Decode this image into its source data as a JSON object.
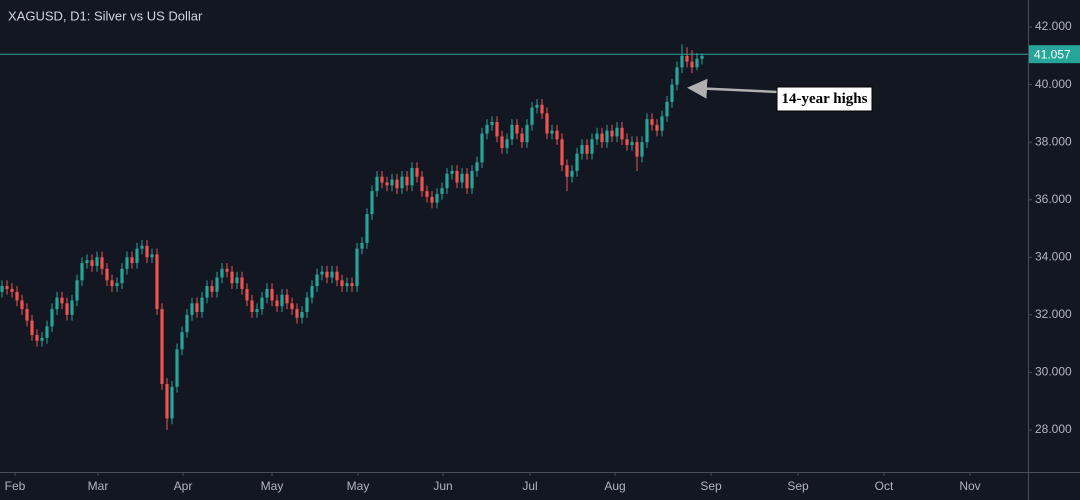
{
  "chart_data": {
    "type": "candlestick",
    "title": "XAGUSD, D1: Silver vs US Dollar",
    "up_color": "#26a69a",
    "down_color": "#ef5350",
    "last_price": 41.057,
    "last_price_color": "#26a69a",
    "annotation": "14-year highs",
    "xlim": [
      -0.4,
      205.2
    ],
    "xticks": [
      {
        "value": 2.6,
        "label": "Feb"
      },
      {
        "value": 19.2,
        "label": "Mar"
      },
      {
        "value": 36.2,
        "label": "Apr"
      },
      {
        "value": 54,
        "label": "May"
      },
      {
        "value": 71.2,
        "label": "May"
      },
      {
        "value": 88.2,
        "label": "Jun"
      },
      {
        "value": 105.6,
        "label": "Jul"
      },
      {
        "value": 122.6,
        "label": "Aug"
      },
      {
        "value": 141.8,
        "label": "Sep"
      },
      {
        "value": 159.2,
        "label": "Sep"
      },
      {
        "value": 176.4,
        "label": "Oct"
      },
      {
        "value": 193.6,
        "label": "Nov"
      }
    ],
    "ylim": [
      26.54,
      42.94
    ],
    "yticks": [
      {
        "value": 28,
        "label": "28.000"
      },
      {
        "value": 30,
        "label": "30.000"
      },
      {
        "value": 32,
        "label": "32.000"
      },
      {
        "value": 34,
        "label": "34.000"
      },
      {
        "value": 36,
        "label": "36.000"
      },
      {
        "value": 38,
        "label": "38.000"
      },
      {
        "value": 40,
        "label": "40.000"
      },
      {
        "value": 42,
        "label": "42.000"
      }
    ],
    "open": [
      32.8,
      33.0,
      32.9,
      32.8,
      32.5,
      32.2,
      31.8,
      31.3,
      31.1,
      31.2,
      31.6,
      32.2,
      32.6,
      32.4,
      32.0,
      32.5,
      33.2,
      33.8,
      33.9,
      33.7,
      34.0,
      33.6,
      33.2,
      33.0,
      33.1,
      33.6,
      34.0,
      33.8,
      34.3,
      34.4,
      34.0,
      34.1,
      32.2,
      29.6,
      28.4,
      29.5,
      30.8,
      31.4,
      32.0,
      32.4,
      32.1,
      32.6,
      33.0,
      32.8,
      33.3,
      33.6,
      33.5,
      33.1,
      33.3,
      32.9,
      32.5,
      32.1,
      32.2,
      32.6,
      32.9,
      32.5,
      32.3,
      32.7,
      32.4,
      32.2,
      31.9,
      32.1,
      32.6,
      33.0,
      33.4,
      33.5,
      33.3,
      33.5,
      33.2,
      33.0,
      33.1,
      33.0,
      34.3,
      34.5,
      35.5,
      36.3,
      36.8,
      36.6,
      36.5,
      36.7,
      36.4,
      36.8,
      36.5,
      37.1,
      36.8,
      36.3,
      36.1,
      35.9,
      36.2,
      36.4,
      36.9,
      37.0,
      36.6,
      36.9,
      36.4,
      37.0,
      37.3,
      38.3,
      38.6,
      38.7,
      38.2,
      37.8,
      38.1,
      38.6,
      38.3,
      38.0,
      38.6,
      39.2,
      39.3,
      39.0,
      38.3,
      38.4,
      38.1,
      37.2,
      36.8,
      37.0,
      37.6,
      37.9,
      37.6,
      38.1,
      38.3,
      38.0,
      38.4,
      38.2,
      38.5,
      38.1,
      37.9,
      38.0,
      37.5,
      38.0,
      38.8,
      38.6,
      38.4,
      38.9,
      39.4,
      40.0,
      40.6,
      41.0,
      40.8,
      40.6,
      40.9
    ],
    "high": [
      33.2,
      33.2,
      33.1,
      33.0,
      32.7,
      32.4,
      32.0,
      31.5,
      31.4,
      31.8,
      32.4,
      32.8,
      32.8,
      32.6,
      32.7,
      33.4,
      34.0,
      34.1,
      34.1,
      34.2,
      34.2,
      33.8,
      33.4,
      33.3,
      33.8,
      34.2,
      34.2,
      34.5,
      34.6,
      34.6,
      34.3,
      34.3,
      32.4,
      29.8,
      29.7,
      31.0,
      31.6,
      32.2,
      32.6,
      32.6,
      32.8,
      33.2,
      33.2,
      33.5,
      33.8,
      33.8,
      33.7,
      33.5,
      33.5,
      33.1,
      32.7,
      32.4,
      32.8,
      33.1,
      33.1,
      32.7,
      32.9,
      32.9,
      32.6,
      32.4,
      32.3,
      32.8,
      33.2,
      33.6,
      33.7,
      33.7,
      33.7,
      33.7,
      33.4,
      33.3,
      33.3,
      34.5,
      34.7,
      35.7,
      36.5,
      37.0,
      37.0,
      36.8,
      36.9,
      36.9,
      37.0,
      37.0,
      37.3,
      37.3,
      37.0,
      36.5,
      36.3,
      36.4,
      36.6,
      37.1,
      37.2,
      37.2,
      37.1,
      37.1,
      37.2,
      37.5,
      38.5,
      38.8,
      38.9,
      38.9,
      38.4,
      38.3,
      38.8,
      38.8,
      38.5,
      38.8,
      39.4,
      39.5,
      39.5,
      39.2,
      38.6,
      38.6,
      38.3,
      37.4,
      37.2,
      37.8,
      38.1,
      38.1,
      38.3,
      38.5,
      38.5,
      38.6,
      38.6,
      38.7,
      38.7,
      38.3,
      38.2,
      38.2,
      38.2,
      39.0,
      39.0,
      38.8,
      39.1,
      39.6,
      40.2,
      40.8,
      41.4,
      41.3,
      41.2,
      41.1,
      41.1
    ],
    "low": [
      32.6,
      32.7,
      32.6,
      32.3,
      32.0,
      31.6,
      31.1,
      30.9,
      30.9,
      31.0,
      31.4,
      32.0,
      32.2,
      31.8,
      31.8,
      32.3,
      33.0,
      33.6,
      33.5,
      33.5,
      33.4,
      33.0,
      32.8,
      32.8,
      32.9,
      33.4,
      33.6,
      33.6,
      34.1,
      33.8,
      33.8,
      32.0,
      29.4,
      28.0,
      28.2,
      29.3,
      30.6,
      31.2,
      31.8,
      31.9,
      31.9,
      32.4,
      32.6,
      32.6,
      33.1,
      33.3,
      32.9,
      32.9,
      32.7,
      32.3,
      31.9,
      31.9,
      32.0,
      32.4,
      32.3,
      32.1,
      32.1,
      32.2,
      32.0,
      31.7,
      31.7,
      31.9,
      32.4,
      32.8,
      33.2,
      33.1,
      33.1,
      33.0,
      32.8,
      32.8,
      32.8,
      32.8,
      34.1,
      34.3,
      35.3,
      36.1,
      36.4,
      36.3,
      36.3,
      36.2,
      36.2,
      36.3,
      36.3,
      36.6,
      36.1,
      35.9,
      35.7,
      35.7,
      36.0,
      36.2,
      36.7,
      36.4,
      36.4,
      36.2,
      36.2,
      36.8,
      37.1,
      38.1,
      38.4,
      38.0,
      37.6,
      37.6,
      37.9,
      38.1,
      37.8,
      37.8,
      38.4,
      39.0,
      38.8,
      38.1,
      38.1,
      37.9,
      37.0,
      36.3,
      36.6,
      36.8,
      37.4,
      37.4,
      37.4,
      37.9,
      37.8,
      37.8,
      38.0,
      38.0,
      37.9,
      37.7,
      37.7,
      37.0,
      37.3,
      37.8,
      38.4,
      38.2,
      38.2,
      38.7,
      39.2,
      39.8,
      40.4,
      40.6,
      40.4,
      40.5,
      40.7
    ],
    "close": [
      33.0,
      32.9,
      32.8,
      32.5,
      32.2,
      31.8,
      31.3,
      31.1,
      31.2,
      31.6,
      32.2,
      32.6,
      32.4,
      32.0,
      32.5,
      33.2,
      33.8,
      33.9,
      33.7,
      34.0,
      33.6,
      33.2,
      33.0,
      33.1,
      33.6,
      34.0,
      33.8,
      34.3,
      34.4,
      34.0,
      34.1,
      32.2,
      29.6,
      28.4,
      29.5,
      30.8,
      31.4,
      32.0,
      32.4,
      32.1,
      32.6,
      33.0,
      32.8,
      33.3,
      33.6,
      33.5,
      33.1,
      33.3,
      32.9,
      32.5,
      32.1,
      32.2,
      32.6,
      32.9,
      32.5,
      32.3,
      32.7,
      32.4,
      32.2,
      31.9,
      32.1,
      32.6,
      33.0,
      33.4,
      33.5,
      33.3,
      33.5,
      33.2,
      33.0,
      33.1,
      33.0,
      34.3,
      34.5,
      35.5,
      36.3,
      36.8,
      36.6,
      36.5,
      36.7,
      36.4,
      36.8,
      36.5,
      37.1,
      36.8,
      36.3,
      36.1,
      35.9,
      36.2,
      36.4,
      36.9,
      37.0,
      36.6,
      36.9,
      36.4,
      37.0,
      37.3,
      38.3,
      38.6,
      38.7,
      38.2,
      37.8,
      38.1,
      38.6,
      38.3,
      38.0,
      38.6,
      39.2,
      39.3,
      39.0,
      38.3,
      38.4,
      38.1,
      37.2,
      36.8,
      37.0,
      37.6,
      37.9,
      37.6,
      38.1,
      38.3,
      38.0,
      38.4,
      38.2,
      38.5,
      38.1,
      37.9,
      38.0,
      37.5,
      38.0,
      38.8,
      38.6,
      38.4,
      38.9,
      39.4,
      40.0,
      40.6,
      41.0,
      40.8,
      40.6,
      40.9,
      41.0
    ]
  }
}
